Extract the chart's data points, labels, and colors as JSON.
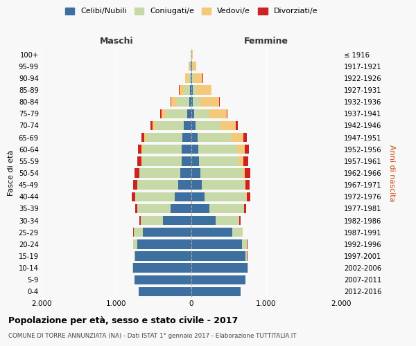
{
  "age_groups": [
    "0-4",
    "5-9",
    "10-14",
    "15-19",
    "20-24",
    "25-29",
    "30-34",
    "35-39",
    "40-44",
    "45-49",
    "50-54",
    "55-59",
    "60-64",
    "65-69",
    "70-74",
    "75-79",
    "80-84",
    "85-89",
    "90-94",
    "95-99",
    "100+"
  ],
  "birth_years": [
    "2012-2016",
    "2007-2011",
    "2002-2006",
    "1997-2001",
    "1992-1996",
    "1987-1991",
    "1982-1986",
    "1977-1981",
    "1972-1976",
    "1967-1971",
    "1962-1966",
    "1957-1961",
    "1952-1956",
    "1947-1951",
    "1942-1946",
    "1937-1941",
    "1932-1936",
    "1927-1931",
    "1922-1926",
    "1917-1921",
    "≤ 1916"
  ],
  "maschi": {
    "celibi": [
      700,
      760,
      780,
      750,
      720,
      650,
      380,
      280,
      220,
      180,
      150,
      130,
      130,
      120,
      100,
      60,
      30,
      20,
      10,
      5,
      2
    ],
    "coniugati": [
      1,
      2,
      5,
      20,
      60,
      120,
      300,
      440,
      530,
      540,
      540,
      530,
      520,
      480,
      380,
      280,
      160,
      70,
      30,
      15,
      5
    ],
    "vedovi": [
      0,
      0,
      0,
      0,
      0,
      0,
      0,
      1,
      2,
      3,
      5,
      10,
      15,
      30,
      40,
      60,
      80,
      70,
      40,
      15,
      3
    ],
    "divorziati": [
      0,
      0,
      0,
      1,
      2,
      5,
      10,
      25,
      40,
      55,
      60,
      55,
      50,
      40,
      30,
      15,
      8,
      5,
      3,
      2,
      1
    ]
  },
  "femmine": {
    "nubili": [
      660,
      720,
      750,
      720,
      680,
      550,
      320,
      240,
      180,
      140,
      120,
      100,
      90,
      80,
      60,
      40,
      20,
      15,
      10,
      5,
      2
    ],
    "coniugate": [
      1,
      2,
      5,
      25,
      65,
      130,
      320,
      460,
      550,
      560,
      560,
      530,
      520,
      450,
      330,
      200,
      100,
      50,
      20,
      10,
      5
    ],
    "vedove": [
      0,
      0,
      0,
      0,
      0,
      1,
      2,
      5,
      10,
      20,
      35,
      60,
      100,
      160,
      200,
      230,
      250,
      200,
      120,
      50,
      10
    ],
    "divorziate": [
      0,
      0,
      0,
      1,
      2,
      6,
      12,
      30,
      45,
      60,
      70,
      65,
      60,
      50,
      30,
      15,
      8,
      5,
      3,
      2,
      1
    ]
  },
  "colors": {
    "celibi": "#3d6fa0",
    "coniugati": "#c8d9a8",
    "vedovi": "#f5c97a",
    "divorziati": "#cc2222"
  },
  "xlim": 2000,
  "title": "Popolazione per età, sesso e stato civile - 2017",
  "subtitle": "COMUNE DI TORRE ANNUNZIATA (NA) - Dati ISTAT 1° gennaio 2017 - Elaborazione TUTTITALIA.IT",
  "ylabel_left": "Fasce di età",
  "ylabel_right": "Anni di nascita",
  "xlabel_maschi": "Maschi",
  "xlabel_femmine": "Femmine",
  "bg_color": "#f8f8f8",
  "legend_labels": [
    "Celibi/Nubili",
    "Coniugati/e",
    "Vedovi/e",
    "Divorziati/e"
  ],
  "xticks": [
    -2000,
    -1000,
    0,
    1000,
    2000
  ],
  "xtick_labels": [
    "2.000",
    "1.000",
    "0",
    "1.000",
    "2.000"
  ]
}
